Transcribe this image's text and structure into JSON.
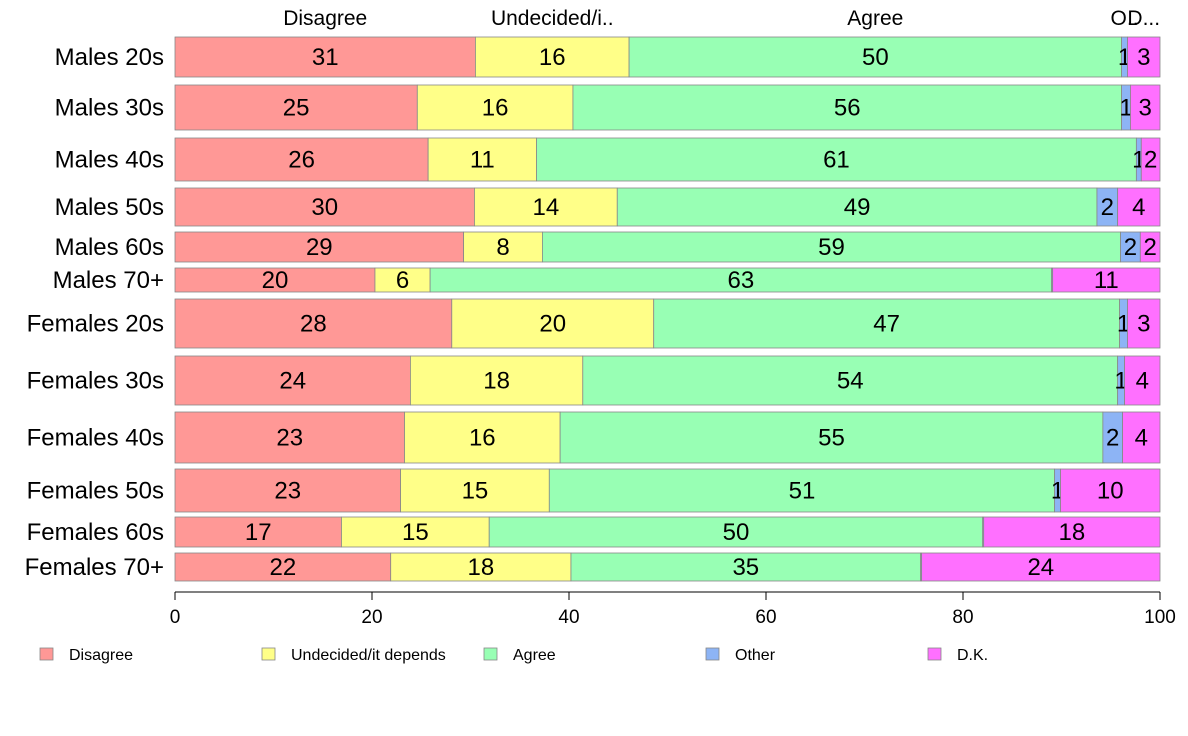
{
  "chart_data": {
    "type": "bar",
    "orientation": "horizontal",
    "stacked": true,
    "xlim": [
      0,
      100
    ],
    "x_ticks": [
      0,
      20,
      40,
      60,
      80,
      100
    ],
    "categories": [
      "Males 20s",
      "Males 30s",
      "Males 40s",
      "Males 50s",
      "Males 60s",
      "Males 70+",
      "Females 20s",
      "Females 30s",
      "Females 40s",
      "Females 50s",
      "Females 60s",
      "Females 70+"
    ],
    "column_headers": [
      {
        "series": 0,
        "text": "Disagree"
      },
      {
        "series": 1,
        "text": "Undecided/i.."
      },
      {
        "series": 2,
        "text": "Agree"
      },
      {
        "series": 3,
        "text": "O.."
      },
      {
        "series": 4,
        "text": "D..."
      }
    ],
    "series": [
      {
        "name": "Disagree",
        "color": "#ff9896",
        "values": [
          30.5,
          24.6,
          25.7,
          30.4,
          29.3,
          20.3,
          28.1,
          23.9,
          23.3,
          22.9,
          16.9,
          21.9
        ]
      },
      {
        "name": "Undecided/it depends",
        "color": "#ffff88",
        "values": [
          15.6,
          15.8,
          11.0,
          14.5,
          8.0,
          5.6,
          20.5,
          17.5,
          15.8,
          15.1,
          15.0,
          18.3
        ]
      },
      {
        "name": "Agree",
        "color": "#98ffb4",
        "values": [
          50.0,
          55.7,
          60.9,
          48.7,
          58.7,
          63.1,
          47.3,
          54.3,
          55.1,
          51.3,
          50.1,
          35.5
        ]
      },
      {
        "name": "Other",
        "color": "#8db4f5",
        "values": [
          0.6,
          0.9,
          0.5,
          2.1,
          2.0,
          0.1,
          0.8,
          0.7,
          2.0,
          0.6,
          0.1,
          0.1
        ]
      },
      {
        "name": "D.K.",
        "color": "#ff70ff",
        "values": [
          3.3,
          3.0,
          1.9,
          4.3,
          2.0,
          10.9,
          3.3,
          3.6,
          3.8,
          10.1,
          17.9,
          24.2
        ]
      }
    ],
    "labels": [
      [
        "31",
        "16",
        "50",
        "1",
        "3"
      ],
      [
        "25",
        "16",
        "56",
        "1",
        "3"
      ],
      [
        "26",
        "11",
        "61",
        "1",
        "2"
      ],
      [
        "30",
        "14",
        "49",
        "2",
        "4"
      ],
      [
        "29",
        "8",
        "59",
        "2",
        "2"
      ],
      [
        "20",
        "6",
        "63",
        "",
        "11"
      ],
      [
        "28",
        "20",
        "47",
        "1",
        "3"
      ],
      [
        "24",
        "18",
        "54",
        "1",
        "4"
      ],
      [
        "23",
        "16",
        "55",
        "2",
        "4"
      ],
      [
        "23",
        "15",
        "51",
        "1",
        "10"
      ],
      [
        "17",
        "15",
        "50",
        "",
        "18"
      ],
      [
        "22",
        "18",
        "35",
        "",
        "24"
      ]
    ],
    "legend": [
      "Disagree",
      "Undecided/it depends",
      "Agree",
      "Other",
      "D.K."
    ],
    "legend_position": "bottom",
    "grid": false
  }
}
